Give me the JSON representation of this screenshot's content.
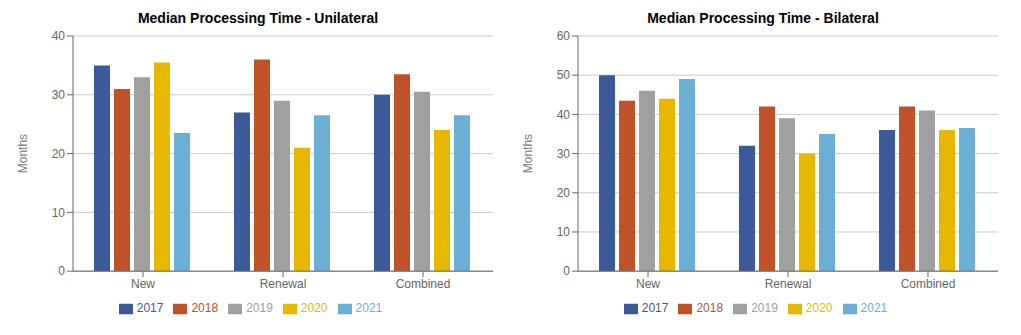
{
  "chart_data": [
    {
      "type": "bar",
      "title": "Median Processing Time - Unilateral",
      "ylabel": "Months",
      "categories": [
        "New",
        "Renewal",
        "Combined"
      ],
      "series": [
        {
          "name": "2017",
          "color": "#3C5A9A",
          "values": [
            35,
            27,
            30
          ]
        },
        {
          "name": "2018",
          "color": "#C0522A",
          "values": [
            31,
            36,
            33.5
          ]
        },
        {
          "name": "2019",
          "color": "#A0A0A0",
          "values": [
            33,
            29,
            30.5
          ]
        },
        {
          "name": "2020",
          "color": "#E8B800",
          "values": [
            35.5,
            21,
            24
          ]
        },
        {
          "name": "2021",
          "color": "#6BAED6",
          "values": [
            23.5,
            26.5,
            26.5
          ]
        }
      ],
      "ylim": [
        0,
        40
      ],
      "yticks": [
        0,
        10,
        20,
        30,
        40
      ],
      "grid": true,
      "legend": "bottom"
    },
    {
      "type": "bar",
      "title": "Median Processing Time - Bilateral",
      "ylabel": "Months",
      "categories": [
        "New",
        "Renewal",
        "Combined"
      ],
      "series": [
        {
          "name": "2017",
          "color": "#3C5A9A",
          "values": [
            50,
            32,
            36
          ]
        },
        {
          "name": "2018",
          "color": "#C0522A",
          "values": [
            43.5,
            42,
            42
          ]
        },
        {
          "name": "2019",
          "color": "#A0A0A0",
          "values": [
            46,
            39,
            41
          ]
        },
        {
          "name": "2020",
          "color": "#E8B800",
          "values": [
            44,
            30,
            36
          ]
        },
        {
          "name": "2021",
          "color": "#6BAED6",
          "values": [
            49,
            35,
            36.5
          ]
        }
      ],
      "ylim": [
        0,
        60
      ],
      "yticks": [
        0,
        10,
        20,
        30,
        40,
        50,
        60
      ],
      "grid": true,
      "legend": "bottom"
    }
  ]
}
